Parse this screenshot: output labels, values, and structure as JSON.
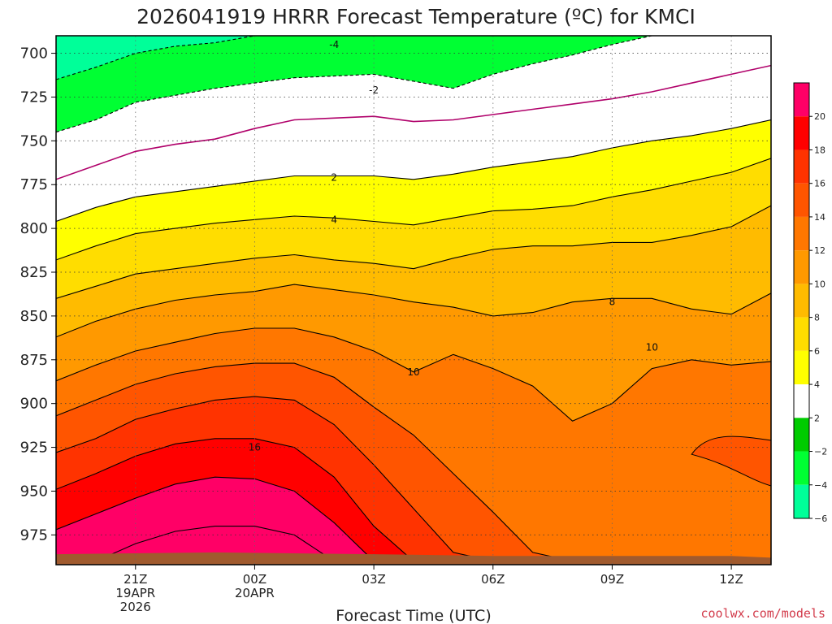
{
  "title": "2026041919 HRRR Forecast Temperature (ºC) for KMCI",
  "credit": "coolwx.com/models",
  "chart_data": {
    "type": "contour",
    "title": "2026041919 HRRR Forecast Temperature (ºC) for KMCI",
    "xlabel": "Forecast Time (UTC)",
    "ylabel": "",
    "x_range_hours": [
      -2.0,
      16.0
    ],
    "y_range_hpa": [
      690,
      992
    ],
    "y_inverted": true,
    "y_ticks": [
      "700",
      "725",
      "750",
      "775",
      "800",
      "825",
      "850",
      "875",
      "900",
      "925",
      "950",
      "975"
    ],
    "x_ticks": [
      {
        "hour": 0,
        "lines": [
          "21Z",
          "19APR",
          "2026"
        ]
      },
      {
        "hour": 3,
        "lines": [
          "00Z",
          "20APR"
        ]
      },
      {
        "hour": 6,
        "lines": [
          "03Z"
        ]
      },
      {
        "hour": 9,
        "lines": [
          "06Z"
        ]
      },
      {
        "hour": 12,
        "lines": [
          "09Z"
        ]
      },
      {
        "hour": 15,
        "lines": [
          "12Z"
        ]
      }
    ],
    "grid": true,
    "hours": [
      -2,
      -1,
      0,
      1,
      2,
      3,
      4,
      5,
      6,
      7,
      8,
      9,
      10,
      11,
      12,
      13,
      14,
      15,
      16
    ],
    "series": [
      {
        "value": -4,
        "pressure": [
          715,
          708,
          700,
          696,
          694,
          690,
          686,
          684,
          686,
          690,
          690,
          688,
          686,
          684,
          682,
          680,
          678,
          676,
          674
        ]
      },
      {
        "value": -2,
        "pressure": [
          745,
          738,
          728,
          724,
          720,
          717,
          714,
          713,
          712,
          716,
          720,
          712,
          706,
          701,
          695,
          690,
          684,
          678,
          673
        ]
      },
      {
        "value": 0,
        "pressure": [
          772,
          764,
          756,
          752,
          749,
          743,
          738,
          737,
          736,
          739,
          738,
          735,
          732,
          729,
          726,
          722,
          717,
          712,
          707
        ]
      },
      {
        "value": 2,
        "pressure": [
          796,
          788,
          782,
          779,
          776,
          773,
          770,
          770,
          770,
          772,
          769,
          765,
          762,
          759,
          754,
          750,
          747,
          743,
          738
        ]
      },
      {
        "value": 4,
        "pressure": [
          818,
          810,
          803,
          800,
          797,
          795,
          793,
          794,
          796,
          798,
          794,
          790,
          789,
          787,
          782,
          778,
          773,
          768,
          760
        ]
      },
      {
        "value": 6,
        "pressure": [
          840,
          833,
          826,
          823,
          820,
          817,
          815,
          818,
          820,
          823,
          817,
          812,
          810,
          810,
          808,
          808,
          804,
          799,
          787
        ]
      },
      {
        "value": 8,
        "pressure": [
          862,
          853,
          846,
          841,
          838,
          836,
          832,
          835,
          838,
          842,
          845,
          850,
          848,
          842,
          840,
          840,
          846,
          849,
          837
        ]
      },
      {
        "value": 10,
        "pressure": [
          887,
          878,
          870,
          865,
          860,
          857,
          857,
          862,
          870,
          882,
          872,
          880,
          890,
          910,
          900,
          880,
          875,
          878,
          876
        ]
      },
      {
        "value": 12,
        "pressure": [
          907,
          898,
          889,
          883,
          879,
          877,
          877,
          885,
          902,
          918,
          940,
          962,
          985,
          990,
          990,
          990,
          990,
          990,
          990
        ]
      },
      {
        "value": 14,
        "pressure": [
          928,
          920,
          909,
          903,
          898,
          896,
          898,
          912,
          935,
          960,
          985,
          990,
          990,
          990,
          990,
          990,
          990,
          990,
          990
        ]
      },
      {
        "value": 16,
        "pressure": [
          949,
          940,
          930,
          923,
          920,
          920,
          925,
          942,
          970,
          990,
          990,
          990,
          990,
          990,
          990,
          990,
          990,
          990,
          990
        ]
      },
      {
        "value": 18,
        "pressure": [
          972,
          963,
          954,
          946,
          942,
          943,
          950,
          968,
          990,
          990,
          990,
          990,
          990,
          990,
          990,
          990,
          990,
          990,
          990
        ]
      },
      {
        "value": 20,
        "pressure": [
          995,
          990,
          980,
          973,
          970,
          970,
          975,
          990,
          995,
          995,
          995,
          995,
          995,
          995,
          995,
          995,
          995,
          995,
          995
        ]
      }
    ],
    "warm_pockets": [
      {
        "value": 12,
        "pressure": [
          0,
          0,
          0,
          0,
          0,
          0,
          0,
          0,
          0,
          0,
          0,
          0,
          0,
          0,
          0,
          0,
          0,
          925,
          925
        ]
      }
    ],
    "contour_labels": [
      {
        "value": "-4",
        "hour": 5.0,
        "pressure": 695
      },
      {
        "value": "-2",
        "hour": 6.0,
        "pressure": 721
      },
      {
        "value": "2",
        "hour": 5.0,
        "pressure": 771
      },
      {
        "value": "4",
        "hour": 5.0,
        "pressure": 795
      },
      {
        "value": "8",
        "hour": 12.0,
        "pressure": 842
      },
      {
        "value": "10",
        "hour": 7.0,
        "pressure": 882
      },
      {
        "value": "10",
        "hour": 13.0,
        "pressure": 868
      },
      {
        "value": "16",
        "hour": 3.0,
        "pressure": 925
      }
    ],
    "surface": {
      "color": "#a05a2e"
    },
    "colorbar": {
      "labels": [
        "20",
        "18",
        "16",
        "14",
        "12",
        "10",
        "8",
        "6",
        "4",
        "2",
        "−2",
        "−4",
        "−6"
      ],
      "colors": [
        "#ff0066",
        "#ff0000",
        "#ff3300",
        "#ff5500",
        "#ff7700",
        "#ff9900",
        "#ffbb00",
        "#ffdd00",
        "#ffff00",
        "#ffffff",
        "#00cc00",
        "#00ff33",
        "#00ff99"
      ]
    }
  }
}
